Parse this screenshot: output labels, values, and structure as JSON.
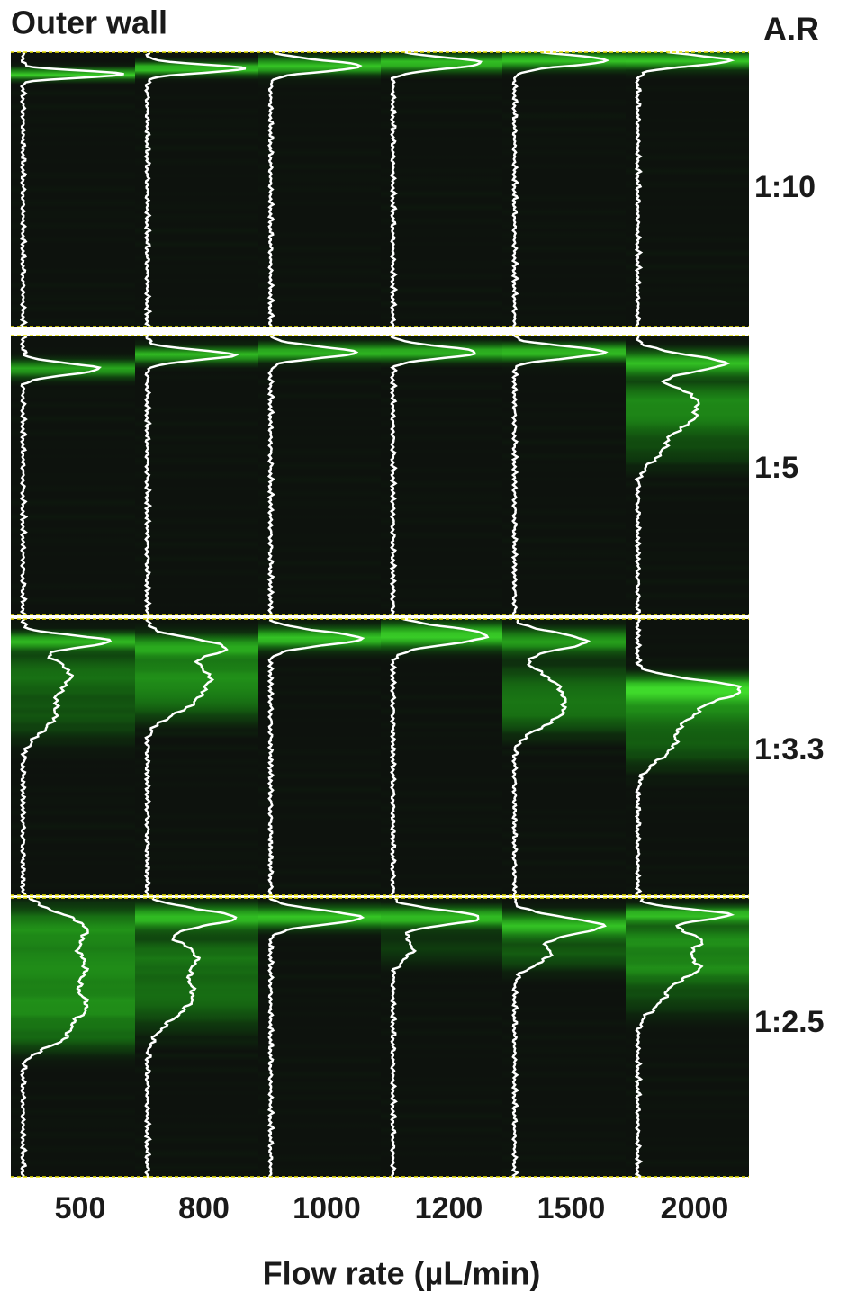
{
  "header": {
    "title": "Outer wall",
    "ratio_heading": "A.R"
  },
  "rows": [
    "1:10",
    "1:5",
    "1:3.3",
    "1:2.5"
  ],
  "columns": [
    "500",
    "800",
    "1000",
    "1200",
    "1500",
    "2000"
  ],
  "x_axis_label": "Flow rate (µL/min)"
}
